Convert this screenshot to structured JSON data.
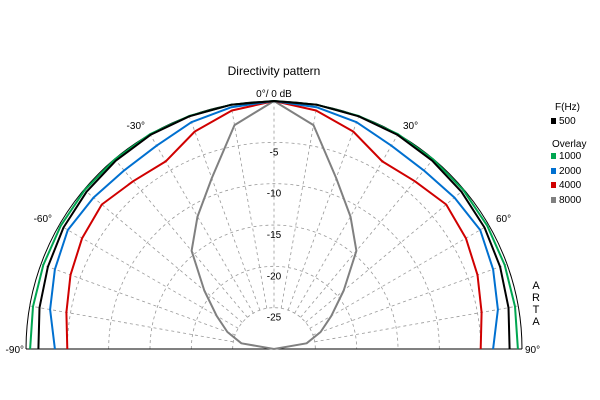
{
  "chart_data": {
    "type": "polar-line",
    "title": "Directivity pattern",
    "angle_unit": "deg",
    "angle_range": [
      -90,
      90
    ],
    "db_range": [
      -30,
      0
    ],
    "db_ticks": [
      {
        "value": 0,
        "label": "0°/ 0 dB"
      },
      {
        "value": -5,
        "label": "-5"
      },
      {
        "value": -10,
        "label": "-10"
      },
      {
        "value": -15,
        "label": "-15"
      },
      {
        "value": -20,
        "label": "-20"
      },
      {
        "value": -25,
        "label": "-25"
      }
    ],
    "angle_labels": [
      {
        "angle": -90,
        "label": "-90°"
      },
      {
        "angle": -60,
        "label": "-60°"
      },
      {
        "angle": -30,
        "label": "-30°"
      },
      {
        "angle": 30,
        "label": "30°"
      },
      {
        "angle": 60,
        "label": "60°"
      },
      {
        "angle": 90,
        "label": "90°"
      }
    ],
    "grid": true,
    "legend": {
      "position": "right",
      "header": "F(Hz)",
      "overlay_label": "Overlay",
      "entries": [
        "500",
        "1000",
        "2000",
        "4000",
        "8000"
      ]
    },
    "watermark": "ARTA",
    "angles": [
      -90,
      -80,
      -70,
      -60,
      -50,
      -40,
      -30,
      -20,
      -10,
      0,
      10,
      20,
      30,
      40,
      50,
      60,
      70,
      80,
      90
    ],
    "series": [
      {
        "name": "500",
        "color": "#000000",
        "values": [
          -1.5,
          -1.2,
          -0.9,
          -0.6,
          -0.4,
          -0.25,
          -0.1,
          -0.05,
          0,
          0,
          0,
          -0.05,
          -0.1,
          -0.25,
          -0.4,
          -0.6,
          -0.9,
          -1.2,
          -1.5
        ]
      },
      {
        "name": "1000",
        "color": "#00a651",
        "values": [
          -0.5,
          -0.4,
          -0.3,
          -0.2,
          -0.1,
          -0.05,
          0,
          0,
          0,
          0,
          0,
          0,
          0,
          -0.05,
          -0.1,
          -0.2,
          -0.3,
          -0.4,
          -0.5
        ]
      },
      {
        "name": "2000",
        "color": "#0070d0",
        "values": [
          -3.5,
          -2.5,
          -1.8,
          -1.2,
          -1.5,
          -1.8,
          -1.6,
          -0.8,
          -0.3,
          0,
          -0.3,
          -0.8,
          -1.6,
          -1.8,
          -1.5,
          -1.2,
          -1.8,
          -2.5,
          -3.5
        ]
      },
      {
        "name": "4000",
        "color": "#d00000",
        "values": [
          -5.0,
          -4.5,
          -3.8,
          -3.2,
          -2.8,
          -3.5,
          -3.8,
          -2.0,
          -0.7,
          0,
          -0.7,
          -2.0,
          -3.8,
          -3.5,
          -2.8,
          -3.2,
          -3.8,
          -4.5,
          -5.0
        ]
      },
      {
        "name": "8000",
        "color": "#808080",
        "values": [
          -30,
          -26,
          -24,
          -22,
          -19,
          -14.5,
          -11.5,
          -8.0,
          -2.5,
          0,
          -2.5,
          -8.0,
          -11.5,
          -14.5,
          -19,
          -22,
          -24,
          -26,
          -30
        ]
      }
    ]
  }
}
